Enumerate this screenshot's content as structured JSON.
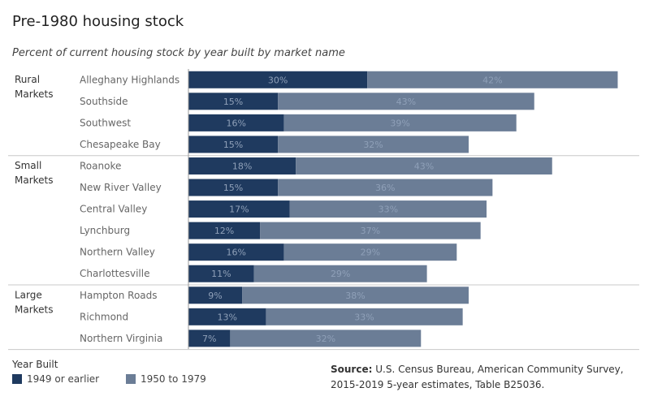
{
  "title": "Pre-1980 housing stock",
  "subtitle": "Percent of current housing stock by year built by market name",
  "legend": {
    "title": "Year Built",
    "items": [
      {
        "label": "1949 or earlier",
        "color": "#1f3a5f"
      },
      {
        "label": "1950 to 1979",
        "color": "#6b7d96"
      }
    ]
  },
  "source": {
    "label": "Source:",
    "text": "U.S. Census Bureau, American Community Survey, 2015-2019 5-year estimates, Table B25036."
  },
  "chart_data": {
    "type": "bar",
    "orientation": "horizontal",
    "stacked": true,
    "groups": [
      {
        "name": "Rural Markets",
        "lines": [
          "Rural",
          "Markets"
        ],
        "categories": [
          "Alleghany Highlands",
          "Southside",
          "Southwest",
          "Chesapeake Bay"
        ]
      },
      {
        "name": "Small Markets",
        "lines": [
          "Small",
          "Markets"
        ],
        "categories": [
          "Roanoke",
          "New River Valley",
          "Central Valley",
          "Lynchburg",
          "Northern Valley",
          "Charlottesville"
        ]
      },
      {
        "name": "Large Markets",
        "lines": [
          "Large",
          "Markets"
        ],
        "categories": [
          "Hampton Roads",
          "Richmond",
          "Northern Virginia"
        ]
      }
    ],
    "categories": [
      "Alleghany Highlands",
      "Southside",
      "Southwest",
      "Chesapeake Bay",
      "Roanoke",
      "New River Valley",
      "Central Valley",
      "Lynchburg",
      "Northern Valley",
      "Charlottesville",
      "Hampton Roads",
      "Richmond",
      "Northern Virginia"
    ],
    "series": [
      {
        "name": "1949 or earlier",
        "color": "#1f3a5f",
        "values": [
          30,
          15,
          16,
          15,
          18,
          15,
          17,
          12,
          16,
          11,
          9,
          13,
          7
        ]
      },
      {
        "name": "1950 to 1979",
        "color": "#6b7d96",
        "values": [
          42,
          43,
          39,
          32,
          43,
          36,
          33,
          37,
          29,
          29,
          38,
          33,
          32
        ]
      }
    ],
    "value_suffix": "%",
    "xlim": [
      0,
      75
    ],
    "grid": false,
    "legend_position": "bottom-left"
  }
}
